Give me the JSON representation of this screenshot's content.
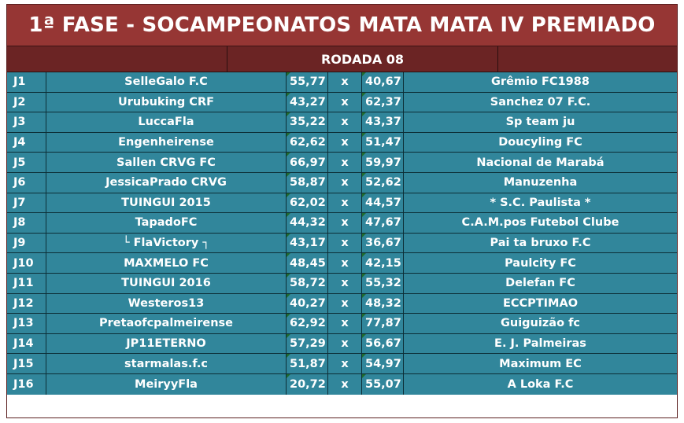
{
  "title": "1ª FASE - SOCAMPEONATOS MATA MATA IV PREMIADO",
  "round_label": "RODADA 08",
  "separator": "x",
  "matches": [
    {
      "id": "J1",
      "home": "SelleGalo F.C",
      "home_score": "55,77",
      "away_score": "40,67",
      "away": "Grêmio FC1988"
    },
    {
      "id": "J2",
      "home": "Urubuking CRF",
      "home_score": "43,27",
      "away_score": "62,37",
      "away": "Sanchez 07 F.C."
    },
    {
      "id": "J3",
      "home": "LuccaFla",
      "home_score": "35,22",
      "away_score": "43,37",
      "away": "Sp team ju"
    },
    {
      "id": "J4",
      "home": "Engenheirense",
      "home_score": "62,62",
      "away_score": "51,47",
      "away": "Doucyling FC"
    },
    {
      "id": "J5",
      "home": "Sallen CRVG FC",
      "home_score": "66,97",
      "away_score": "59,97",
      "away": "Nacional de Marabá"
    },
    {
      "id": "J6",
      "home": "JessicaPrado CRVG",
      "home_score": "58,87",
      "away_score": "52,62",
      "away": "Manuzenha"
    },
    {
      "id": "J7",
      "home": "TUINGUI 2015",
      "home_score": "62,02",
      "away_score": "44,57",
      "away": "* S.C. Paulista *"
    },
    {
      "id": "J8",
      "home": "TapadoFC",
      "home_score": "44,32",
      "away_score": "47,67",
      "away": "C.A.M.pos Futebol Clube"
    },
    {
      "id": "J9",
      "home": "└ FlaVictory ┐",
      "home_score": "43,17",
      "away_score": "36,67",
      "away": "Pai ta bruxo F.C"
    },
    {
      "id": "J10",
      "home": "MAXMELO FC",
      "home_score": "48,45",
      "away_score": "42,15",
      "away": "Paulcity FC"
    },
    {
      "id": "J11",
      "home": "TUINGUI 2016",
      "home_score": "58,72",
      "away_score": "55,32",
      "away": "Delefan FC"
    },
    {
      "id": "J12",
      "home": "Westeros13",
      "home_score": "40,27",
      "away_score": "48,32",
      "away": "ECCPTIMAO"
    },
    {
      "id": "J13",
      "home": "Pretaofcpalmeirense",
      "home_score": "62,92",
      "away_score": "77,87",
      "away": "Guiguizão fc"
    },
    {
      "id": "J14",
      "home": "JP11ETERNO",
      "home_score": "57,29",
      "away_score": "56,67",
      "away": "E. J. Palmeiras"
    },
    {
      "id": "J15",
      "home": "starmalas.f.c",
      "home_score": "51,87",
      "away_score": "54,97",
      "away": "Maximum EC"
    },
    {
      "id": "J16",
      "home": "MeiryyFla",
      "home_score": "20,72",
      "away_score": "55,07",
      "away": "A Loka F.C"
    }
  ]
}
